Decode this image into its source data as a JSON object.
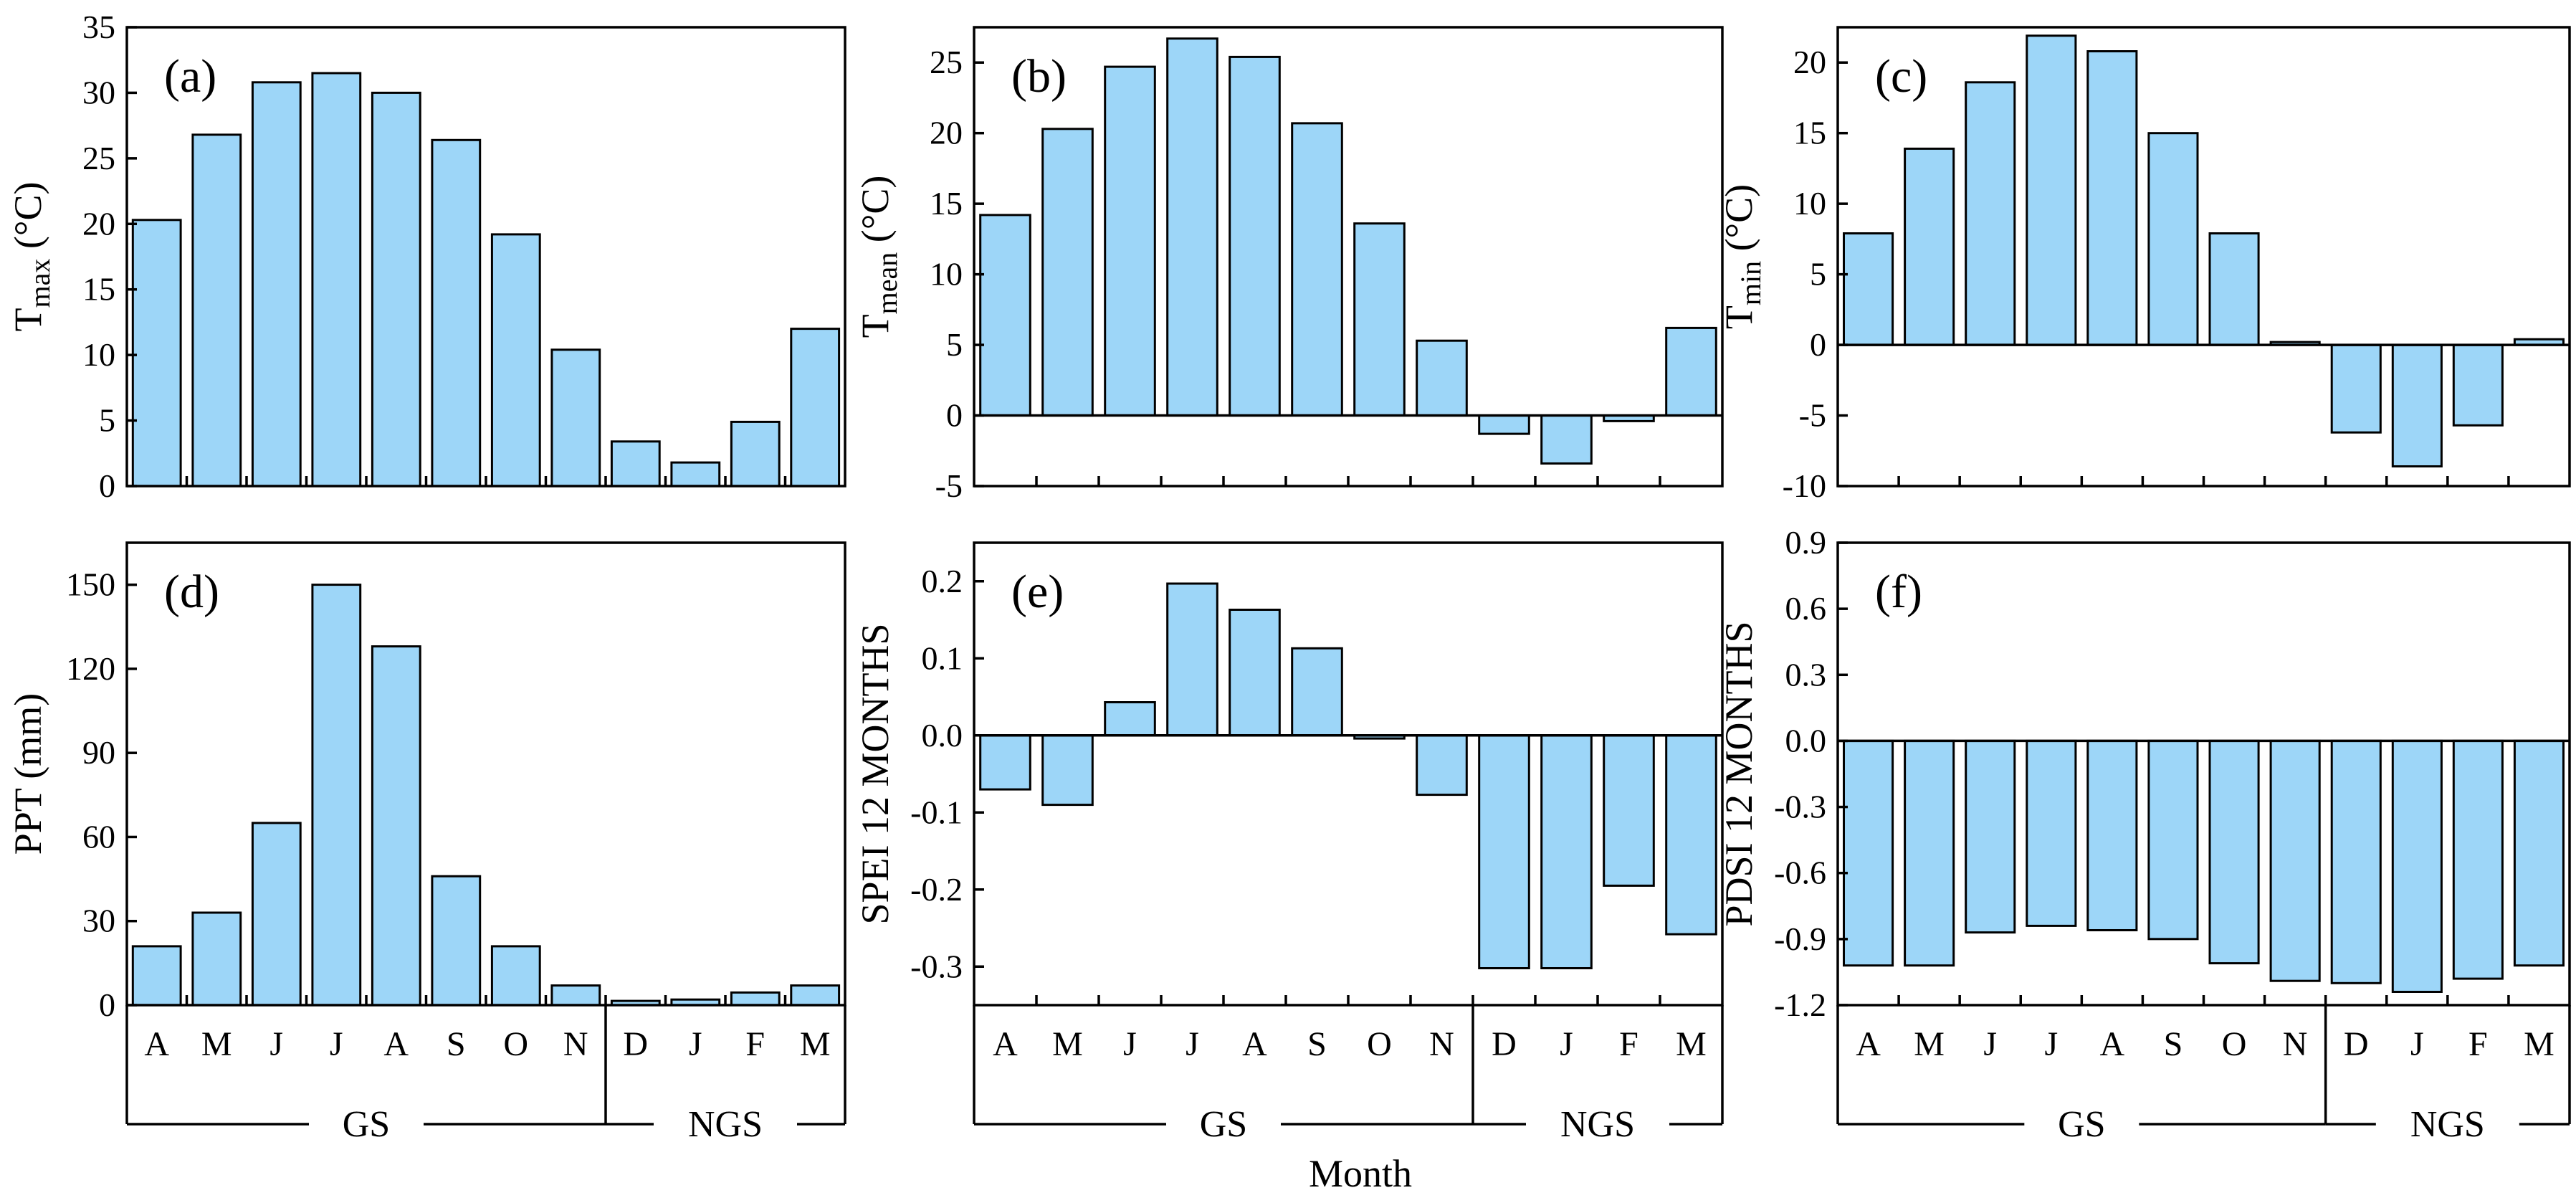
{
  "figure": {
    "x_title": "Month",
    "bar_color": "#9dd6f8",
    "edge_color": "#000000"
  },
  "chart_data": [
    {
      "id": "a",
      "type": "bar",
      "panel_label": "(a)",
      "ylabel": "T",
      "ylabel_sub": "max",
      "ylabel_unit": " (°C)",
      "categories": [
        "A",
        "M",
        "J",
        "J",
        "A",
        "S",
        "O",
        "N",
        "D",
        "J",
        "F",
        "M"
      ],
      "values": [
        20.3,
        26.8,
        30.8,
        31.5,
        30.0,
        26.4,
        19.2,
        10.4,
        3.4,
        1.8,
        4.9,
        12.0
      ],
      "ylim": [
        0,
        35
      ],
      "yticks": [
        0,
        5,
        10,
        15,
        20,
        25,
        30,
        35
      ],
      "ytick_labels": [
        "0",
        "5",
        "10",
        "15",
        "20",
        "25",
        "30",
        "35"
      ],
      "show_categories": false
    },
    {
      "id": "b",
      "type": "bar",
      "panel_label": "(b)",
      "ylabel": "T",
      "ylabel_sub": "mean",
      "ylabel_unit": " (°C)",
      "categories": [
        "A",
        "M",
        "J",
        "J",
        "A",
        "S",
        "O",
        "N",
        "D",
        "J",
        "F",
        "M"
      ],
      "values": [
        14.2,
        20.3,
        24.7,
        26.7,
        25.4,
        20.7,
        13.6,
        5.3,
        -1.3,
        -3.4,
        -0.4,
        6.2
      ],
      "ylim": [
        -5,
        27.5
      ],
      "yticks": [
        -5,
        0,
        5,
        10,
        15,
        20,
        25
      ],
      "ytick_labels": [
        "-5",
        "0",
        "5",
        "10",
        "15",
        "20",
        "25"
      ],
      "show_categories": false
    },
    {
      "id": "c",
      "type": "bar",
      "panel_label": "(c)",
      "ylabel": "T",
      "ylabel_sub": "min",
      "ylabel_unit": " (°C)",
      "categories": [
        "A",
        "M",
        "J",
        "J",
        "A",
        "S",
        "O",
        "N",
        "D",
        "J",
        "F",
        "M"
      ],
      "values": [
        7.9,
        13.9,
        18.6,
        21.9,
        20.8,
        15.0,
        7.9,
        0.2,
        -6.2,
        -8.6,
        -5.7,
        0.4
      ],
      "ylim": [
        -10,
        22.5
      ],
      "yticks": [
        -10,
        -5,
        0,
        5,
        10,
        15,
        20
      ],
      "ytick_labels": [
        "-10",
        "-5",
        "0",
        "5",
        "10",
        "15",
        "20"
      ],
      "show_categories": false
    },
    {
      "id": "d",
      "type": "bar",
      "panel_label": "(d)",
      "ylabel": "PPT (mm)",
      "ylabel_sub": "",
      "ylabel_unit": "",
      "categories": [
        "A",
        "M",
        "J",
        "J",
        "A",
        "S",
        "O",
        "N",
        "D",
        "J",
        "F",
        "M"
      ],
      "values": [
        21,
        33,
        65,
        150,
        128,
        46,
        21,
        7,
        1.5,
        2,
        4.5,
        7
      ],
      "ylim": [
        0,
        165
      ],
      "yticks": [
        0,
        30,
        60,
        90,
        120,
        150
      ],
      "ytick_labels": [
        "0",
        "30",
        "60",
        "90",
        "120",
        "150"
      ],
      "show_categories": true,
      "groups": [
        {
          "label": "GS",
          "start": 0,
          "end": 8
        },
        {
          "label": "NGS",
          "start": 8,
          "end": 12
        }
      ]
    },
    {
      "id": "e",
      "type": "bar",
      "panel_label": "(e)",
      "ylabel": "SPEI 12 MONTHS",
      "ylabel_sub": "",
      "ylabel_unit": "",
      "categories": [
        "A",
        "M",
        "J",
        "J",
        "A",
        "S",
        "O",
        "N",
        "D",
        "J",
        "F",
        "M"
      ],
      "values": [
        -0.07,
        -0.09,
        0.043,
        0.197,
        0.163,
        0.113,
        -0.004,
        -0.077,
        -0.302,
        -0.302,
        -0.195,
        -0.258
      ],
      "ylim": [
        -0.35,
        0.25
      ],
      "yticks": [
        -0.3,
        -0.2,
        -0.1,
        0.0,
        0.1,
        0.2
      ],
      "ytick_labels": [
        "-0.3",
        "-0.2",
        "-0.1",
        "0.0",
        "0.1",
        "0.2"
      ],
      "show_categories": true,
      "groups": [
        {
          "label": "GS",
          "start": 0,
          "end": 8
        },
        {
          "label": "NGS",
          "start": 8,
          "end": 12
        }
      ]
    },
    {
      "id": "f",
      "type": "bar",
      "panel_label": "(f)",
      "ylabel": "PDSI 12 MONTHS",
      "ylabel_sub": "",
      "ylabel_unit": "",
      "categories": [
        "A",
        "M",
        "J",
        "J",
        "A",
        "S",
        "O",
        "N",
        "D",
        "J",
        "F",
        "M"
      ],
      "values": [
        -1.02,
        -1.02,
        -0.87,
        -0.84,
        -0.86,
        -0.9,
        -1.01,
        -1.09,
        -1.1,
        -1.14,
        -1.08,
        -1.02
      ],
      "ylim": [
        -1.2,
        0.9
      ],
      "yticks": [
        -1.2,
        -0.9,
        -0.6,
        -0.3,
        0.0,
        0.3,
        0.6,
        0.9
      ],
      "ytick_labels": [
        "-1.2",
        "-0.9",
        "-0.6",
        "-0.3",
        "0.0",
        "0.3",
        "0.6",
        "0.9"
      ],
      "show_categories": true,
      "groups": [
        {
          "label": "GS",
          "start": 0,
          "end": 8
        },
        {
          "label": "NGS",
          "start": 8,
          "end": 12
        }
      ]
    }
  ]
}
